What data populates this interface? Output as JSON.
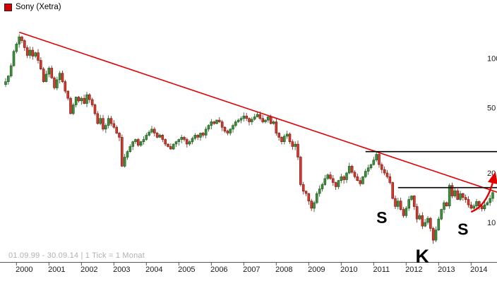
{
  "legend": {
    "symbol_label": "Sony (Xetra)",
    "marker_color": "#d40000"
  },
  "footer": {
    "range_info": "01.09.99 - 30.09.14 | 1 Tick = 1 Monat"
  },
  "chart_data": {
    "type": "candlestick",
    "symbol": "Sony (Xetra)",
    "tick_interval": "1 Monat",
    "date_range": "01.09.99 - 30.09.14",
    "scale": "log",
    "start_month": "1999-09",
    "end_month": "2014-09",
    "x_year_labels": [
      2000,
      2001,
      2002,
      2003,
      2004,
      2005,
      2006,
      2007,
      2008,
      2009,
      2010,
      2011,
      2012,
      2013,
      2014
    ],
    "y_ticks": [
      100,
      50,
      20,
      10
    ],
    "colors": {
      "up": "#3f8f3f",
      "up_border": "#1c541c",
      "down": "#d23b2e",
      "down_border": "#7a1410"
    },
    "monthly_closes": [
      72,
      78,
      90,
      110,
      122,
      135,
      128,
      116,
      104,
      112,
      103,
      108,
      97,
      86,
      72,
      80,
      87,
      76,
      66,
      74,
      81,
      72,
      63,
      57,
      46,
      52,
      58,
      55,
      57,
      53,
      60,
      56,
      52,
      46,
      40,
      43,
      37,
      39,
      43,
      40,
      38,
      35,
      33,
      22,
      25,
      27,
      29,
      31,
      32,
      29.5,
      31,
      32,
      34,
      35.5,
      37,
      35,
      33,
      34,
      32,
      30,
      29,
      28,
      30,
      31,
      32,
      33,
      32,
      30,
      31,
      32.5,
      34,
      33,
      35,
      34,
      37,
      39,
      41,
      40,
      42,
      41,
      38,
      36,
      35,
      37,
      39,
      41,
      42,
      43,
      44.5,
      43,
      41,
      42.5,
      44,
      45.5,
      43,
      41,
      42,
      44,
      40,
      41,
      35,
      33,
      31,
      33.5,
      34.5,
      31,
      29,
      30,
      25,
      17,
      15.5,
      15,
      13.5,
      12.2,
      13.2,
      15,
      16,
      17,
      18.5,
      19.5,
      18.5,
      17.5,
      16.5,
      18,
      19,
      18.2,
      20,
      22,
      20.2,
      19,
      18,
      17.2,
      19,
      20.5,
      21.5,
      22.5,
      24,
      26,
      22.5,
      21,
      20,
      19,
      17.5,
      14,
      12.5,
      13.5,
      12,
      11,
      12.2,
      13.8,
      14.5,
      12.5,
      10.5,
      11,
      9.5,
      10,
      10.6,
      9.2,
      7.8,
      9,
      10.5,
      12,
      13.2,
      12.6,
      16.8,
      14.5,
      15.6,
      13.8,
      15,
      14.2,
      13.8,
      12.8,
      12.2,
      12.6,
      13.4,
      12.6,
      12.1,
      12.8,
      13.2,
      14,
      15.2
    ],
    "overlays": {
      "trendline": {
        "color": "#e00000",
        "from": {
          "month_index": 5,
          "price": 144
        },
        "to": {
          "month_index": 181,
          "price": 15.4
        }
      },
      "horizontal_lines": [
        {
          "price": 27,
          "from_month_index": 133,
          "color": "#000000"
        },
        {
          "price": 16.3,
          "from_month_index": 145,
          "color": "#000000"
        }
      ],
      "annotations": [
        {
          "text": "S",
          "month_index": 139,
          "price": 9.9,
          "font_px": 23
        },
        {
          "text": "K",
          "month_index": 154,
          "price": 5.7,
          "font_px": 27
        },
        {
          "text": "S",
          "month_index": 169,
          "price": 8.4,
          "font_px": 23
        }
      ],
      "breakout_arrow": {
        "color": "#e00000",
        "points": [
          {
            "month_index": 172,
            "price": 11.6
          },
          {
            "month_index": 178,
            "price": 12.6
          },
          {
            "month_index": 180.5,
            "price": 18.8
          }
        ]
      }
    },
    "legend_position": "top-left",
    "grid": false
  }
}
